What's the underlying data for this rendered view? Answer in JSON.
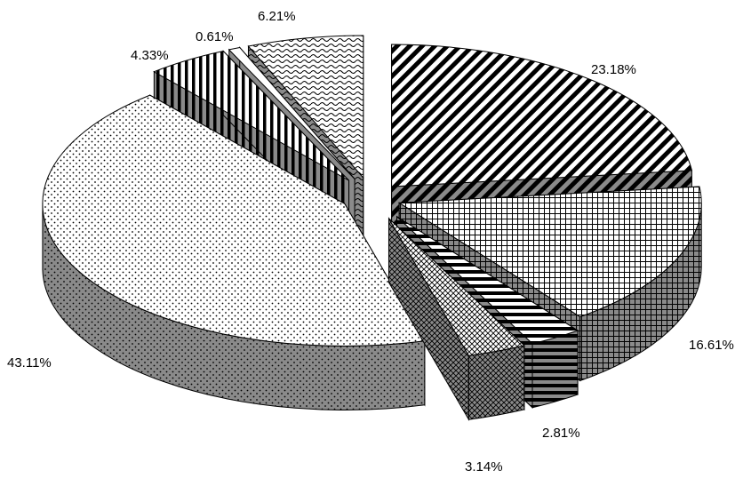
{
  "chart_data": {
    "type": "pie",
    "style": "3d-exploded",
    "legend": "none",
    "slices": [
      {
        "label": "23.18%",
        "value": 23.18,
        "pattern": "diagonal-stripes"
      },
      {
        "label": "16.61%",
        "value": 16.61,
        "pattern": "grid"
      },
      {
        "label": "2.81%",
        "value": 2.81,
        "pattern": "horizontal-stripes"
      },
      {
        "label": "3.14%",
        "value": 3.14,
        "pattern": "crosshatch"
      },
      {
        "label": "43.11%",
        "value": 43.11,
        "pattern": "dots"
      },
      {
        "label": "4.33%",
        "value": 4.33,
        "pattern": "vertical-stripes"
      },
      {
        "label": "0.61%",
        "value": 0.61,
        "pattern": "plain"
      },
      {
        "label": "6.21%",
        "value": 6.21,
        "pattern": "wave"
      }
    ]
  }
}
